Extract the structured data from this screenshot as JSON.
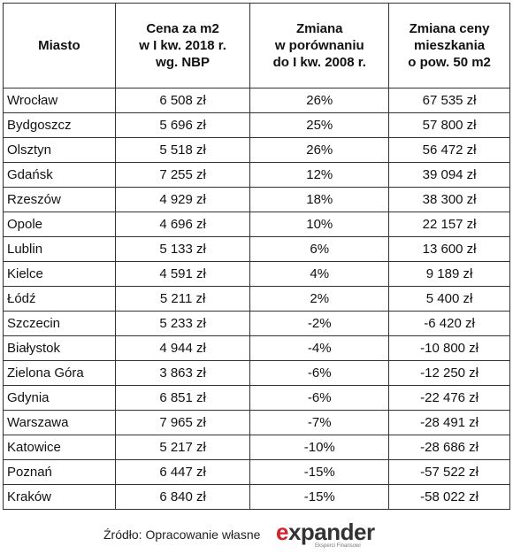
{
  "table": {
    "header": [
      "Miasto",
      "Cena za m2\nw I kw. 2018 r.\nwg. NBP",
      "Zmiana\nw porównaniu\ndo I kw. 2008 r.",
      "Zmiana ceny\nmieszkania\no pow. 50 m2"
    ],
    "rows": [
      [
        "Wrocław",
        "6 508 zł",
        "26%",
        "67 535 zł"
      ],
      [
        "Bydgoszcz",
        "5 696 zł",
        "25%",
        "57 800 zł"
      ],
      [
        "Olsztyn",
        "5 518 zł",
        "26%",
        "56 472 zł"
      ],
      [
        "Gdańsk",
        "7 255 zł",
        "12%",
        "39 094 zł"
      ],
      [
        "Rzeszów",
        "4 929 zł",
        "18%",
        "38 300 zł"
      ],
      [
        "Opole",
        "4 696 zł",
        "10%",
        "22 157 zł"
      ],
      [
        "Lublin",
        "5 133 zł",
        "6%",
        "13 600 zł"
      ],
      [
        "Kielce",
        "4 591 zł",
        "4%",
        "9 189 zł"
      ],
      [
        "Łódź",
        "5 211 zł",
        "2%",
        "5 400 zł"
      ],
      [
        "Szczecin",
        "5 233 zł",
        "-2%",
        "-6 420 zł"
      ],
      [
        "Białystok",
        "4 944 zł",
        "-4%",
        "-10 800 zł"
      ],
      [
        "Zielona Góra",
        "3 863 zł",
        "-6%",
        "-12 250 zł"
      ],
      [
        "Gdynia",
        "6 851 zł",
        "-6%",
        "-22 476 zł"
      ],
      [
        "Warszawa",
        "7 965 zł",
        "-7%",
        "-28 491 zł"
      ],
      [
        "Katowice",
        "5 217 zł",
        "-10%",
        "-28 686 zł"
      ],
      [
        "Poznań",
        "6 447 zł",
        "-15%",
        "-57 522 zł"
      ],
      [
        "Kraków",
        "6 840 zł",
        "-15%",
        "-58 022 zł"
      ]
    ]
  },
  "footer": {
    "source": "Źródło: Opracowanie własne",
    "logo": "expander",
    "tagline": "Eksperci Finansowi"
  }
}
